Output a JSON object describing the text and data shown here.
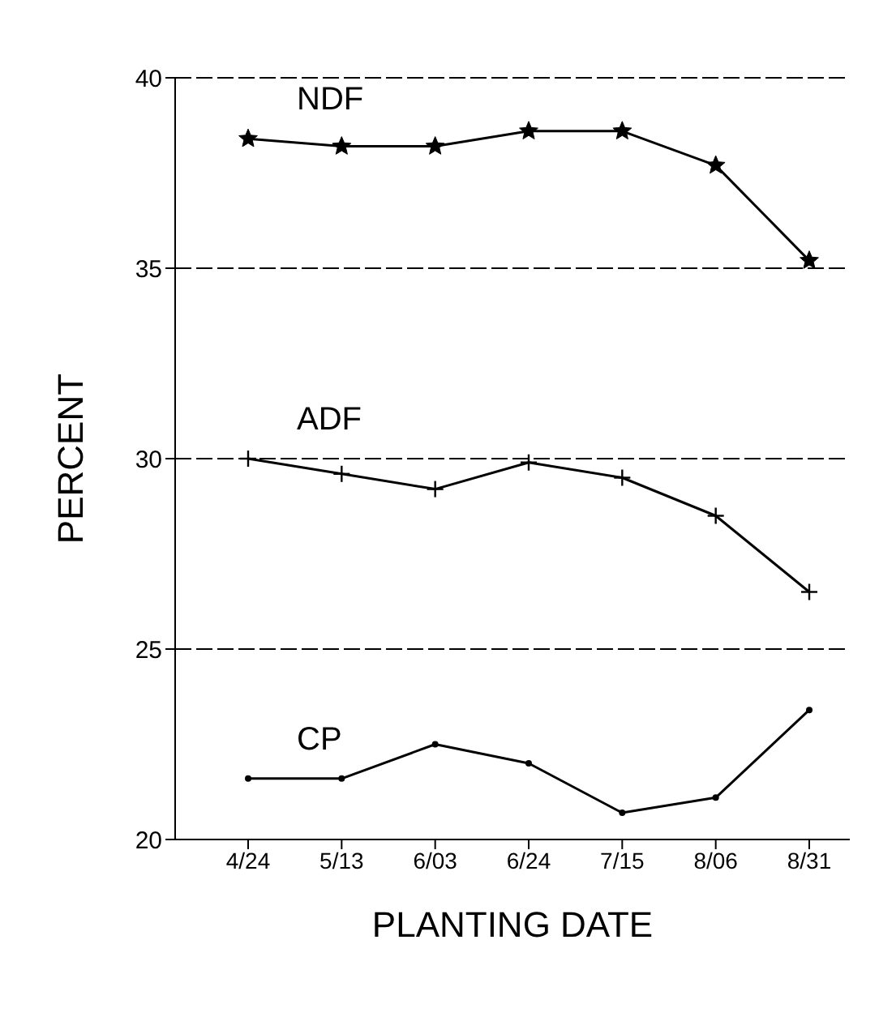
{
  "chart_data": {
    "type": "line",
    "xlabel": "PLANTING DATE",
    "ylabel": "PERCENT",
    "categories": [
      "4/24",
      "5/13",
      "6/03",
      "6/24",
      "7/15",
      "8/06",
      "8/31"
    ],
    "series": [
      {
        "name": "NDF",
        "color": "#000000",
        "marker": "star",
        "values": [
          38.4,
          38.2,
          38.2,
          38.6,
          38.6,
          37.7,
          35.2
        ]
      },
      {
        "name": "ADF",
        "color": "#000000",
        "marker": "cross",
        "values": [
          30.0,
          29.6,
          29.2,
          29.9,
          29.5,
          28.5,
          26.5
        ]
      },
      {
        "name": "CP",
        "color": "#000000",
        "marker": "circle",
        "values": [
          21.6,
          21.6,
          22.5,
          22.0,
          20.7,
          21.1,
          23.4
        ]
      }
    ],
    "ylim": [
      20,
      40
    ],
    "yticks": [
      20,
      25,
      30,
      35,
      40
    ],
    "grid": "y",
    "legend": false,
    "line_style": "solid"
  }
}
